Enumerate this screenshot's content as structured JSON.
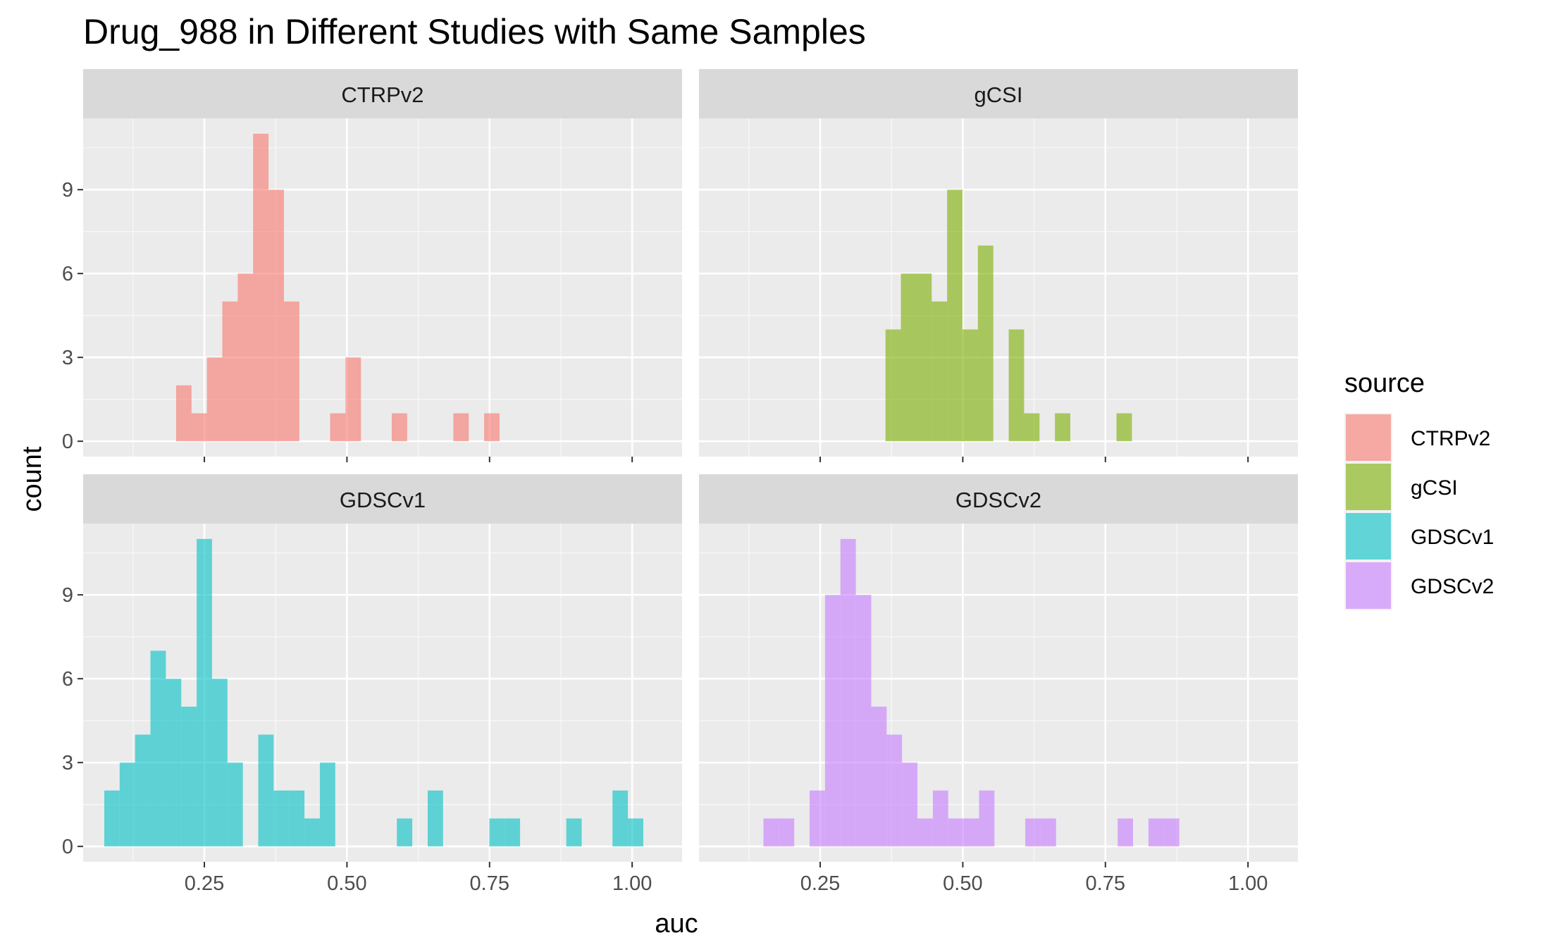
{
  "chart_data": {
    "type": "bar",
    "title": "Drug_988 in Different Studies with Same Samples",
    "xlabel": "auc",
    "ylabel": "count",
    "xlim": [
      0.0375,
      1.0875
    ],
    "ylim": [
      -0.55,
      11.55
    ],
    "x_ticks": [
      0.25,
      0.5,
      0.75,
      1.0
    ],
    "x_tick_labels": [
      "0.25",
      "0.50",
      "0.75",
      "1.00"
    ],
    "y_ticks": [
      0,
      3,
      6,
      9
    ],
    "y_tick_labels": [
      "0",
      "3",
      "6",
      "9"
    ],
    "grid": true,
    "bin_width": 0.027,
    "legend": {
      "title": "source",
      "placement": "right",
      "entries": [
        "CTRPv2",
        "gCSI",
        "GDSCv1",
        "GDSCv2"
      ]
    },
    "panels": [
      {
        "name": "CTRPv2",
        "color": "#F8766D",
        "bins": [
          {
            "x": 0.214,
            "count": 2
          },
          {
            "x": 0.241,
            "count": 1
          },
          {
            "x": 0.268,
            "count": 3
          },
          {
            "x": 0.295,
            "count": 5
          },
          {
            "x": 0.322,
            "count": 6
          },
          {
            "x": 0.349,
            "count": 11
          },
          {
            "x": 0.376,
            "count": 9
          },
          {
            "x": 0.403,
            "count": 5
          },
          {
            "x": 0.484,
            "count": 1
          },
          {
            "x": 0.511,
            "count": 3
          },
          {
            "x": 0.592,
            "count": 1
          },
          {
            "x": 0.7,
            "count": 1
          },
          {
            "x": 0.754,
            "count": 1
          }
        ]
      },
      {
        "name": "gCSI",
        "color": "#7CAE00",
        "bins": [
          {
            "x": 0.378,
            "count": 4
          },
          {
            "x": 0.405,
            "count": 6
          },
          {
            "x": 0.432,
            "count": 6
          },
          {
            "x": 0.459,
            "count": 5
          },
          {
            "x": 0.486,
            "count": 9
          },
          {
            "x": 0.513,
            "count": 4
          },
          {
            "x": 0.54,
            "count": 7
          },
          {
            "x": 0.594,
            "count": 4
          },
          {
            "x": 0.621,
            "count": 1
          },
          {
            "x": 0.675,
            "count": 1
          },
          {
            "x": 0.783,
            "count": 1
          }
        ]
      },
      {
        "name": "GDSCv1",
        "color": "#00BFC4",
        "bins": [
          {
            "x": 0.088,
            "count": 2
          },
          {
            "x": 0.115,
            "count": 3
          },
          {
            "x": 0.142,
            "count": 4
          },
          {
            "x": 0.169,
            "count": 7
          },
          {
            "x": 0.196,
            "count": 6
          },
          {
            "x": 0.223,
            "count": 5
          },
          {
            "x": 0.25,
            "count": 11
          },
          {
            "x": 0.277,
            "count": 6
          },
          {
            "x": 0.304,
            "count": 3
          },
          {
            "x": 0.358,
            "count": 4
          },
          {
            "x": 0.385,
            "count": 2
          },
          {
            "x": 0.412,
            "count": 2
          },
          {
            "x": 0.439,
            "count": 1
          },
          {
            "x": 0.466,
            "count": 3
          },
          {
            "x": 0.601,
            "count": 1
          },
          {
            "x": 0.655,
            "count": 2
          },
          {
            "x": 0.763,
            "count": 1
          },
          {
            "x": 0.79,
            "count": 1
          },
          {
            "x": 0.898,
            "count": 1
          },
          {
            "x": 0.979,
            "count": 2
          },
          {
            "x": 1.006,
            "count": 1
          }
        ]
      },
      {
        "name": "GDSCv2",
        "color": "#C77CFF",
        "bins": [
          {
            "x": 0.164,
            "count": 1
          },
          {
            "x": 0.191,
            "count": 1
          },
          {
            "x": 0.245,
            "count": 2
          },
          {
            "x": 0.272,
            "count": 9
          },
          {
            "x": 0.299,
            "count": 11
          },
          {
            "x": 0.326,
            "count": 9
          },
          {
            "x": 0.353,
            "count": 5
          },
          {
            "x": 0.38,
            "count": 4
          },
          {
            "x": 0.407,
            "count": 3
          },
          {
            "x": 0.434,
            "count": 1
          },
          {
            "x": 0.461,
            "count": 2
          },
          {
            "x": 0.488,
            "count": 1
          },
          {
            "x": 0.515,
            "count": 1
          },
          {
            "x": 0.542,
            "count": 2
          },
          {
            "x": 0.623,
            "count": 1
          },
          {
            "x": 0.65,
            "count": 1
          },
          {
            "x": 0.785,
            "count": 1
          },
          {
            "x": 0.839,
            "count": 1
          },
          {
            "x": 0.866,
            "count": 1
          }
        ]
      }
    ]
  }
}
